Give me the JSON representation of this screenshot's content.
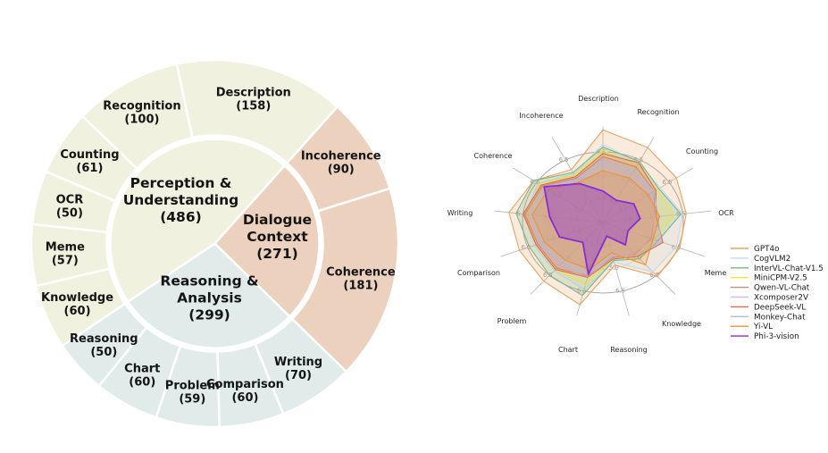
{
  "figure": {
    "background": "#ffffff",
    "description": "Benchmark taxonomy sunburst and model performance radar"
  },
  "chart_data": [
    {
      "type": "pie",
      "variant": "sunburst",
      "start_angle_deg": -12,
      "group_colors": {
        "perception": "#F0F2DF",
        "dialogue": "#ECD2BE",
        "reasoning": "#E1EBE9"
      },
      "inner_labels": [
        {
          "group": "perception",
          "lines": [
            "Perception &",
            "Understanding",
            "(486)"
          ],
          "total": 486
        },
        {
          "group": "dialogue",
          "lines": [
            "Dialogue",
            "Context",
            "(271)"
          ],
          "total": 271
        },
        {
          "group": "reasoning",
          "lines": [
            "Reasoning &",
            "Analysis",
            "(299)"
          ],
          "total": 299
        }
      ],
      "segments": [
        {
          "label": "Description",
          "value": 158,
          "group": "perception"
        },
        {
          "label": "Incoherence",
          "value": 90,
          "group": "dialogue"
        },
        {
          "label": "Coherence",
          "value": 181,
          "group": "dialogue"
        },
        {
          "label": "Writing",
          "value": 70,
          "group": "reasoning"
        },
        {
          "label": "Comparison",
          "value": 60,
          "group": "reasoning"
        },
        {
          "label": "Problem",
          "value": 59,
          "group": "reasoning"
        },
        {
          "label": "Chart",
          "value": 60,
          "group": "reasoning"
        },
        {
          "label": "Reasoning",
          "value": 50,
          "group": "reasoning"
        },
        {
          "label": "Knowledge",
          "value": 60,
          "group": "perception"
        },
        {
          "label": "Meme",
          "value": 57,
          "group": "perception"
        },
        {
          "label": "OCR",
          "value": 50,
          "group": "perception"
        },
        {
          "label": "Counting",
          "value": 61,
          "group": "perception"
        },
        {
          "label": "Recognition",
          "value": 100,
          "group": "perception"
        }
      ]
    },
    {
      "type": "radar",
      "axes": [
        "Description",
        "Recognition",
        "Counting",
        "OCR",
        "Meme",
        "Knowledge",
        "Reasoning",
        "Chart",
        "Problem",
        "Comparison",
        "Writing",
        "Coherence",
        "Incoherence"
      ],
      "tick_values": [
        3.5,
        5.0,
        6.5
      ],
      "tick_labels": [
        "3.5",
        "5.0",
        "6.5"
      ],
      "center_label": "N/A",
      "scale": {
        "center_value": 2.0,
        "outer_ring_value": 6.5
      },
      "grid": true,
      "legend_position": "right",
      "series": [
        {
          "name": "GPT4o",
          "color": "#E8A360",
          "values": [
            7.9,
            7.4,
            7.0,
            6.7,
            6.6,
            6.6,
            4.8,
            7.4,
            7.0,
            7.0,
            7.3,
            6.7,
            5.8
          ]
        },
        {
          "name": "CogVLM2",
          "color": "#BFDBF2",
          "values": [
            7.0,
            6.3,
            5.9,
            6.5,
            6.4,
            6.2,
            4.6,
            6.4,
            6.1,
            6.1,
            6.4,
            6.4,
            5.5
          ]
        },
        {
          "name": "InterVL-Chat-V1.5",
          "color": "#79B78A",
          "values": [
            6.8,
            6.4,
            5.8,
            6.4,
            5.3,
            5.1,
            4.5,
            6.8,
            6.5,
            6.4,
            6.9,
            6.7,
            5.6
          ]
        },
        {
          "name": "MiniCPM-V2.5",
          "color": "#F2E03C",
          "values": [
            6.6,
            6.1,
            5.7,
            6.0,
            5.1,
            4.9,
            4.4,
            6.1,
            6.0,
            6.0,
            6.3,
            6.3,
            5.4
          ]
        },
        {
          "name": "Qwen-VL-Chat",
          "color": "#C98C82",
          "values": [
            6.2,
            6.0,
            5.5,
            4.9,
            4.9,
            4.7,
            4.3,
            5.5,
            5.9,
            5.9,
            6.4,
            6.1,
            5.2
          ]
        },
        {
          "name": "Xcomposer2V",
          "color": "#D8BCE0",
          "values": [
            6.0,
            5.6,
            5.3,
            4.9,
            5.0,
            4.6,
            4.2,
            5.6,
            5.7,
            5.8,
            6.1,
            5.9,
            5.0
          ]
        },
        {
          "name": "DeepSeek-VL",
          "color": "#E06A4D",
          "values": [
            6.4,
            6.3,
            5.6,
            5.0,
            5.6,
            4.9,
            4.4,
            5.6,
            6.0,
            6.0,
            6.5,
            6.2,
            5.3
          ]
        },
        {
          "name": "Monkey-Chat",
          "color": "#A9BDE6",
          "values": [
            5.9,
            5.7,
            5.5,
            5.1,
            5.5,
            4.8,
            4.2,
            5.4,
            5.5,
            5.7,
            6.1,
            5.9,
            5.1
          ]
        },
        {
          "name": "Yi-VL",
          "color": "#F0922F",
          "values": [
            5.3,
            5.2,
            5.1,
            5.2,
            5.0,
            5.6,
            4.0,
            5.1,
            5.2,
            5.5,
            6.0,
            5.7,
            4.9
          ]
        },
        {
          "name": "Phi-3-vision",
          "color": "#8A2BD8",
          "values": [
            4.0,
            3.6,
            4.1,
            4.1,
            3.5,
            3.9,
            2.9,
            5.4,
            3.7,
            4.6,
            5.0,
            6.0,
            4.8
          ]
        }
      ]
    }
  ]
}
